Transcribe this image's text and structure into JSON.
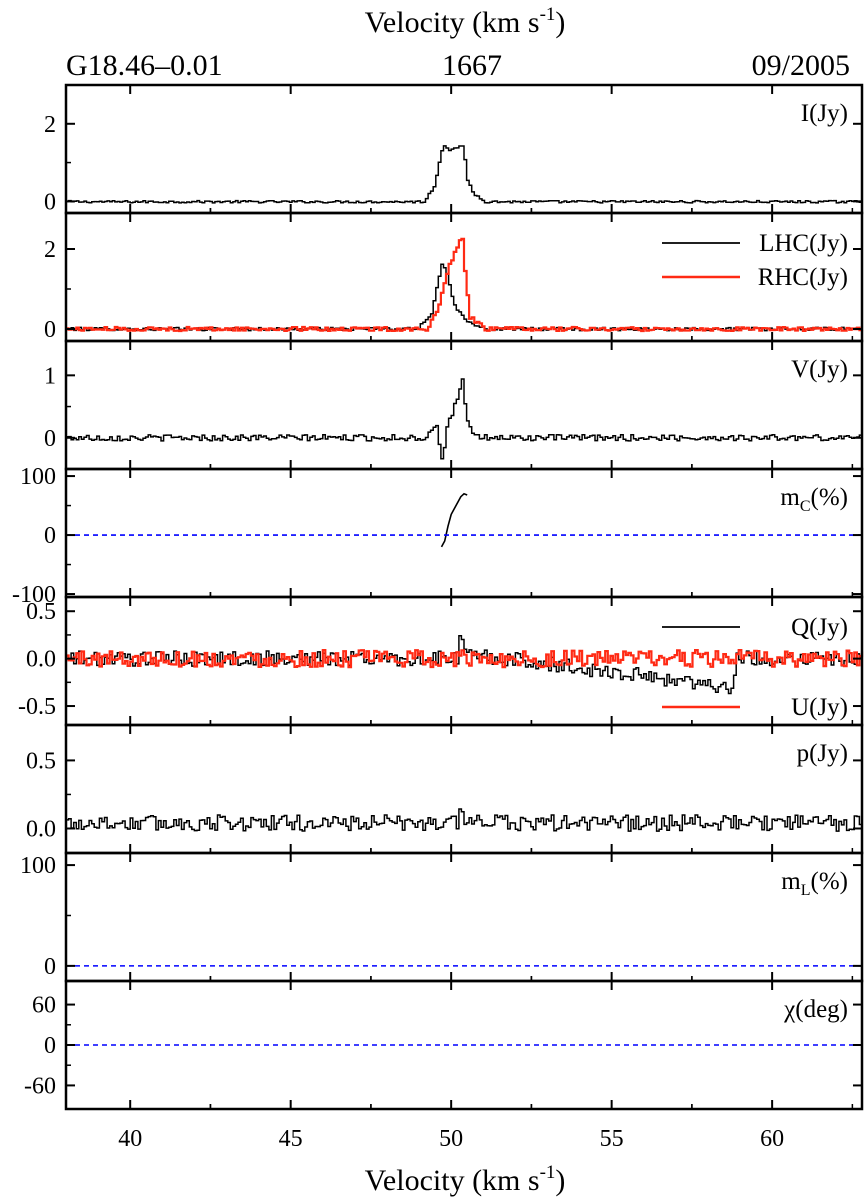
{
  "header": {
    "top_axis_label": "Velocity (km s",
    "top_axis_label_sup": "-1",
    "top_axis_label_close": ")",
    "source": "G18.46–0.01",
    "frequency": "1667",
    "epoch": "09/2005"
  },
  "footer": {
    "bottom_axis_label": "Velocity (km s",
    "bottom_axis_label_sup": "-1",
    "bottom_axis_label_close": ")"
  },
  "colors": {
    "black_series": "#000000",
    "red_series": "#ff2a14",
    "zero_line": "#0000ff"
  },
  "chart_data": {
    "type": "line",
    "x_axis": {
      "label": "Velocity (km s-1)",
      "range": [
        38,
        62.8
      ],
      "ticks": [
        40,
        45,
        50,
        55,
        60
      ],
      "tick_labels": [
        "40",
        "45",
        "50",
        "55",
        "60"
      ]
    },
    "panels": [
      {
        "id": "I",
        "label": "I(Jy)",
        "ylim": [
          -0.3,
          3.0
        ],
        "yticks": [
          0,
          2
        ],
        "ytick_labels": [
          "0",
          "2"
        ],
        "series": [
          {
            "color": "#000000",
            "noise": 0.03,
            "baseline": -0.01,
            "x": [
              49.2,
              49.5,
              49.7,
              49.8,
              50.0,
              50.2,
              50.4,
              50.5,
              50.7,
              51.0
            ],
            "y": [
              0.05,
              0.4,
              1.3,
              1.45,
              1.3,
              1.4,
              1.4,
              0.6,
              0.2,
              0.05
            ]
          }
        ]
      },
      {
        "id": "LR",
        "label": "",
        "ylim": [
          -0.3,
          2.9
        ],
        "yticks": [
          0,
          2
        ],
        "ytick_labels": [
          "0",
          "2"
        ],
        "legend": [
          {
            "name": "LHC(Jy)",
            "color": "#000000"
          },
          {
            "name": "RHC(Jy)",
            "color": "#ff2a14"
          }
        ],
        "series": [
          {
            "name": "LHC(Jy)",
            "color": "#000000",
            "noise": 0.04,
            "baseline": 0,
            "x": [
              49.0,
              49.4,
              49.6,
              49.75,
              49.9,
              50.1,
              50.3,
              50.6,
              51.0
            ],
            "y": [
              0.05,
              0.4,
              1.2,
              1.7,
              1.3,
              0.6,
              0.4,
              0.15,
              0.05
            ]
          },
          {
            "name": "RHC(Jy)",
            "color": "#ff2a14",
            "noise": 0.05,
            "baseline": 0,
            "x": [
              49.3,
              49.6,
              49.8,
              50.0,
              50.2,
              50.35,
              50.45,
              50.6,
              51.0
            ],
            "y": [
              0.05,
              0.5,
              1.1,
              1.7,
              2.0,
              2.35,
              1.3,
              0.3,
              0.05
            ]
          }
        ]
      },
      {
        "id": "V",
        "label": "V(Jy)",
        "ylim": [
          -0.5,
          1.55
        ],
        "yticks": [
          0,
          1
        ],
        "ytick_labels": [
          "0",
          "1"
        ],
        "series": [
          {
            "color": "#000000",
            "noise": 0.05,
            "baseline": 0,
            "x": [
              49.2,
              49.55,
              49.7,
              49.8,
              49.9,
              50.05,
              50.2,
              50.35,
              50.5,
              50.7
            ],
            "y": [
              0.0,
              0.25,
              -0.35,
              -0.2,
              0.3,
              0.4,
              0.65,
              0.95,
              0.25,
              0.05
            ]
          }
        ]
      },
      {
        "id": "mc",
        "label": "mC(%)",
        "label_main": "m",
        "label_sub": "C",
        "label_rest": "(%)",
        "ylim": [
          -105,
          112
        ],
        "yticks": [
          -100,
          0,
          100
        ],
        "ytick_labels": [
          "-100",
          "0",
          "100"
        ],
        "zero_line": true,
        "series": [
          {
            "color": "#000000",
            "noise": 0,
            "baseline": null,
            "x": [
              49.7,
              49.8,
              49.9,
              50.0,
              50.1,
              50.2,
              50.3,
              50.4,
              50.5
            ],
            "y": [
              -20,
              -10,
              15,
              35,
              45,
              55,
              65,
              70,
              68
            ]
          }
        ]
      },
      {
        "id": "QU",
        "label": "",
        "ylim": [
          -0.7,
          0.65
        ],
        "yticks": [
          -0.5,
          0.0,
          0.5
        ],
        "ytick_labels": [
          "-0.5",
          "0.0",
          "0.5"
        ],
        "legend": [
          {
            "name": "Q(Jy)",
            "color": "#000000"
          },
          {
            "name": "U(Jy)",
            "color": "#ff2a14"
          }
        ],
        "series": [
          {
            "name": "Q(Jy)",
            "color": "#000000",
            "noise": 0.08,
            "baseline": 0,
            "x": [
              50.2,
              50.3,
              50.4,
              58.8,
              58.9
            ],
            "y": [
              0.05,
              0.3,
              0.05,
              -0.3,
              -0.05
            ]
          },
          {
            "name": "U(Jy)",
            "color": "#ff2a14",
            "noise": 0.09,
            "baseline": 0,
            "x": [],
            "y": []
          }
        ]
      },
      {
        "id": "p",
        "label": "p(Jy)",
        "ylim": [
          -0.18,
          0.76
        ],
        "yticks": [
          0.0,
          0.5
        ],
        "ytick_labels": [
          "0.0",
          "0.5"
        ],
        "series": [
          {
            "color": "#000000",
            "noise": 0.06,
            "baseline": 0.04,
            "x": [
              50.2,
              50.3,
              50.4
            ],
            "y": [
              0.1,
              0.22,
              0.1
            ]
          }
        ]
      },
      {
        "id": "mL",
        "label": "mL(%)",
        "label_main": "m",
        "label_sub": "L",
        "label_rest": "(%)",
        "ylim": [
          -15,
          112
        ],
        "yticks": [
          0,
          100
        ],
        "ytick_labels": [
          "0",
          "100"
        ],
        "zero_line": true,
        "series": []
      },
      {
        "id": "chi",
        "label": "χ(deg)",
        "ylim": [
          -95,
          95
        ],
        "yticks": [
          -60,
          0,
          60
        ],
        "ytick_labels": [
          "-60",
          "0",
          "60"
        ],
        "zero_line": true,
        "series": []
      }
    ]
  }
}
